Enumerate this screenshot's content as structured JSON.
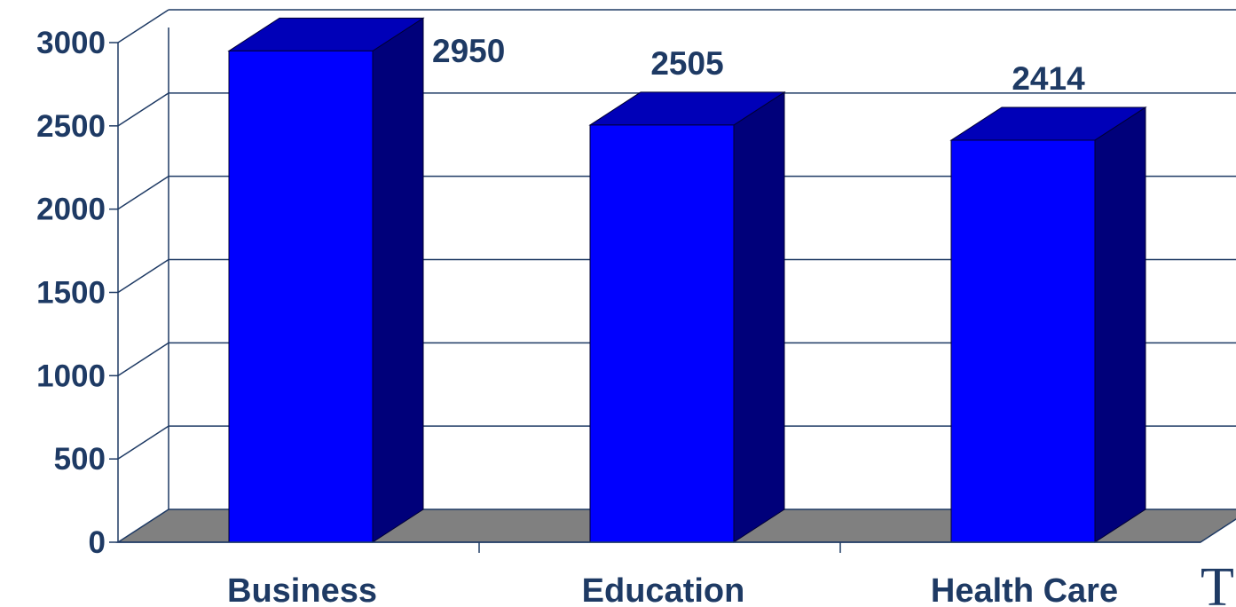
{
  "chart_data": {
    "type": "bar",
    "style": "3d",
    "categories": [
      "Business",
      "Education",
      "Health Care"
    ],
    "values": [
      2950,
      2505,
      2414
    ],
    "data_labels": [
      "2950",
      "2505",
      "2414"
    ],
    "yticks": [
      "0",
      "500",
      "1000",
      "1500",
      "2000",
      "2500",
      "3000"
    ],
    "ylim": [
      0,
      3000
    ],
    "grid": true,
    "legend": "none",
    "colors": {
      "bar_front": "#0000ff",
      "bar_side": "#00007a",
      "bar_top": "#0000b8",
      "floor": "#808080",
      "grid": "#1e3a64",
      "text": "#1e3a64"
    }
  },
  "partial_text": "T"
}
